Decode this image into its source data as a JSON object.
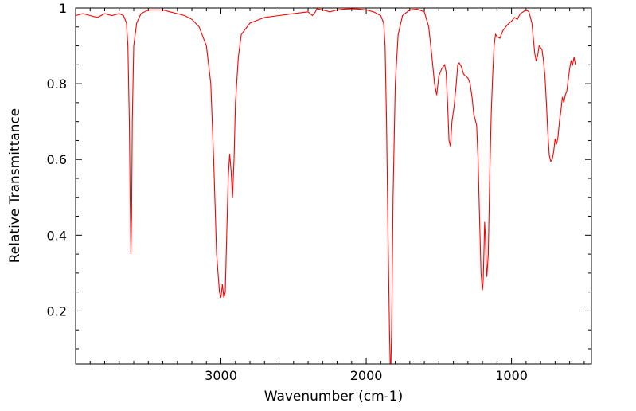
{
  "chart_data": {
    "type": "line",
    "xlabel": "Wavenumber (cm-1)",
    "ylabel": "Relative Transmittance",
    "xlim": [
      4000,
      450
    ],
    "ylim": [
      0.06,
      1.0
    ],
    "x_reversed": true,
    "grid": false,
    "legend": "none",
    "x_ticks": [
      {
        "value": 3000,
        "label": "3000"
      },
      {
        "value": 2000,
        "label": "2000"
      },
      {
        "value": 1000,
        "label": "1000"
      }
    ],
    "y_ticks": [
      {
        "value": 0.2,
        "label": "0.2"
      },
      {
        "value": 0.4,
        "label": "0.4"
      },
      {
        "value": 0.6,
        "label": "0.6"
      },
      {
        "value": 0.8,
        "label": "0.8"
      },
      {
        "value": 1.0,
        "label": "1"
      }
    ],
    "series": [
      {
        "color": "#ff0000",
        "points": [
          [
            4000,
            0.98
          ],
          [
            3950,
            0.985
          ],
          [
            3900,
            0.98
          ],
          [
            3850,
            0.975
          ],
          [
            3800,
            0.985
          ],
          [
            3750,
            0.98
          ],
          [
            3700,
            0.985
          ],
          [
            3670,
            0.98
          ],
          [
            3650,
            0.96
          ],
          [
            3640,
            0.9
          ],
          [
            3630,
            0.7
          ],
          [
            3625,
            0.5
          ],
          [
            3620,
            0.35
          ],
          [
            3615,
            0.45
          ],
          [
            3610,
            0.7
          ],
          [
            3600,
            0.9
          ],
          [
            3580,
            0.96
          ],
          [
            3550,
            0.985
          ],
          [
            3500,
            0.995
          ],
          [
            3450,
            0.995
          ],
          [
            3400,
            0.995
          ],
          [
            3350,
            0.99
          ],
          [
            3300,
            0.985
          ],
          [
            3250,
            0.98
          ],
          [
            3200,
            0.97
          ],
          [
            3150,
            0.95
          ],
          [
            3100,
            0.9
          ],
          [
            3070,
            0.8
          ],
          [
            3050,
            0.6
          ],
          [
            3030,
            0.35
          ],
          [
            3010,
            0.25
          ],
          [
            3000,
            0.235
          ],
          [
            2990,
            0.27
          ],
          [
            2980,
            0.235
          ],
          [
            2970,
            0.25
          ],
          [
            2960,
            0.4
          ],
          [
            2950,
            0.55
          ],
          [
            2940,
            0.615
          ],
          [
            2930,
            0.57
          ],
          [
            2920,
            0.5
          ],
          [
            2910,
            0.6
          ],
          [
            2900,
            0.75
          ],
          [
            2880,
            0.87
          ],
          [
            2860,
            0.93
          ],
          [
            2800,
            0.96
          ],
          [
            2700,
            0.975
          ],
          [
            2600,
            0.98
          ],
          [
            2500,
            0.985
          ],
          [
            2400,
            0.99
          ],
          [
            2370,
            0.98
          ],
          [
            2350,
            0.99
          ],
          [
            2340,
            0.998
          ],
          [
            2300,
            0.995
          ],
          [
            2250,
            0.99
          ],
          [
            2200,
            0.995
          ],
          [
            2150,
            0.997
          ],
          [
            2100,
            0.998
          ],
          [
            2050,
            0.997
          ],
          [
            2000,
            0.995
          ],
          [
            1950,
            0.99
          ],
          [
            1900,
            0.98
          ],
          [
            1880,
            0.96
          ],
          [
            1870,
            0.9
          ],
          [
            1860,
            0.7
          ],
          [
            1850,
            0.4
          ],
          [
            1840,
            0.15
          ],
          [
            1835,
            0.06
          ],
          [
            1830,
            0.06
          ],
          [
            1825,
            0.15
          ],
          [
            1815,
            0.5
          ],
          [
            1800,
            0.8
          ],
          [
            1780,
            0.93
          ],
          [
            1750,
            0.98
          ],
          [
            1700,
            0.995
          ],
          [
            1650,
            0.997
          ],
          [
            1600,
            0.99
          ],
          [
            1570,
            0.95
          ],
          [
            1550,
            0.88
          ],
          [
            1530,
            0.8
          ],
          [
            1515,
            0.77
          ],
          [
            1500,
            0.82
          ],
          [
            1480,
            0.84
          ],
          [
            1460,
            0.85
          ],
          [
            1450,
            0.83
          ],
          [
            1440,
            0.75
          ],
          [
            1430,
            0.65
          ],
          [
            1420,
            0.635
          ],
          [
            1410,
            0.7
          ],
          [
            1395,
            0.74
          ],
          [
            1380,
            0.8
          ],
          [
            1370,
            0.85
          ],
          [
            1360,
            0.855
          ],
          [
            1345,
            0.845
          ],
          [
            1330,
            0.825
          ],
          [
            1315,
            0.82
          ],
          [
            1300,
            0.815
          ],
          [
            1285,
            0.8
          ],
          [
            1270,
            0.76
          ],
          [
            1260,
            0.72
          ],
          [
            1250,
            0.705
          ],
          [
            1240,
            0.69
          ],
          [
            1230,
            0.6
          ],
          [
            1220,
            0.45
          ],
          [
            1210,
            0.3
          ],
          [
            1200,
            0.255
          ],
          [
            1195,
            0.28
          ],
          [
            1190,
            0.35
          ],
          [
            1185,
            0.435
          ],
          [
            1180,
            0.4
          ],
          [
            1175,
            0.33
          ],
          [
            1170,
            0.29
          ],
          [
            1160,
            0.35
          ],
          [
            1150,
            0.55
          ],
          [
            1140,
            0.72
          ],
          [
            1130,
            0.82
          ],
          [
            1120,
            0.9
          ],
          [
            1110,
            0.93
          ],
          [
            1100,
            0.925
          ],
          [
            1080,
            0.92
          ],
          [
            1060,
            0.94
          ],
          [
            1030,
            0.955
          ],
          [
            1000,
            0.965
          ],
          [
            980,
            0.975
          ],
          [
            960,
            0.97
          ],
          [
            940,
            0.985
          ],
          [
            920,
            0.99
          ],
          [
            900,
            0.995
          ],
          [
            880,
            0.99
          ],
          [
            860,
            0.96
          ],
          [
            850,
            0.92
          ],
          [
            840,
            0.88
          ],
          [
            830,
            0.86
          ],
          [
            820,
            0.875
          ],
          [
            810,
            0.9
          ],
          [
            800,
            0.895
          ],
          [
            790,
            0.89
          ],
          [
            780,
            0.86
          ],
          [
            770,
            0.82
          ],
          [
            760,
            0.75
          ],
          [
            750,
            0.67
          ],
          [
            740,
            0.61
          ],
          [
            730,
            0.595
          ],
          [
            720,
            0.6
          ],
          [
            710,
            0.62
          ],
          [
            700,
            0.655
          ],
          [
            690,
            0.64
          ],
          [
            680,
            0.66
          ],
          [
            670,
            0.7
          ],
          [
            660,
            0.73
          ],
          [
            650,
            0.765
          ],
          [
            640,
            0.75
          ],
          [
            630,
            0.77
          ],
          [
            620,
            0.78
          ],
          [
            610,
            0.81
          ],
          [
            600,
            0.84
          ],
          [
            590,
            0.86
          ],
          [
            580,
            0.85
          ],
          [
            570,
            0.87
          ],
          [
            560,
            0.85
          ]
        ]
      }
    ]
  }
}
